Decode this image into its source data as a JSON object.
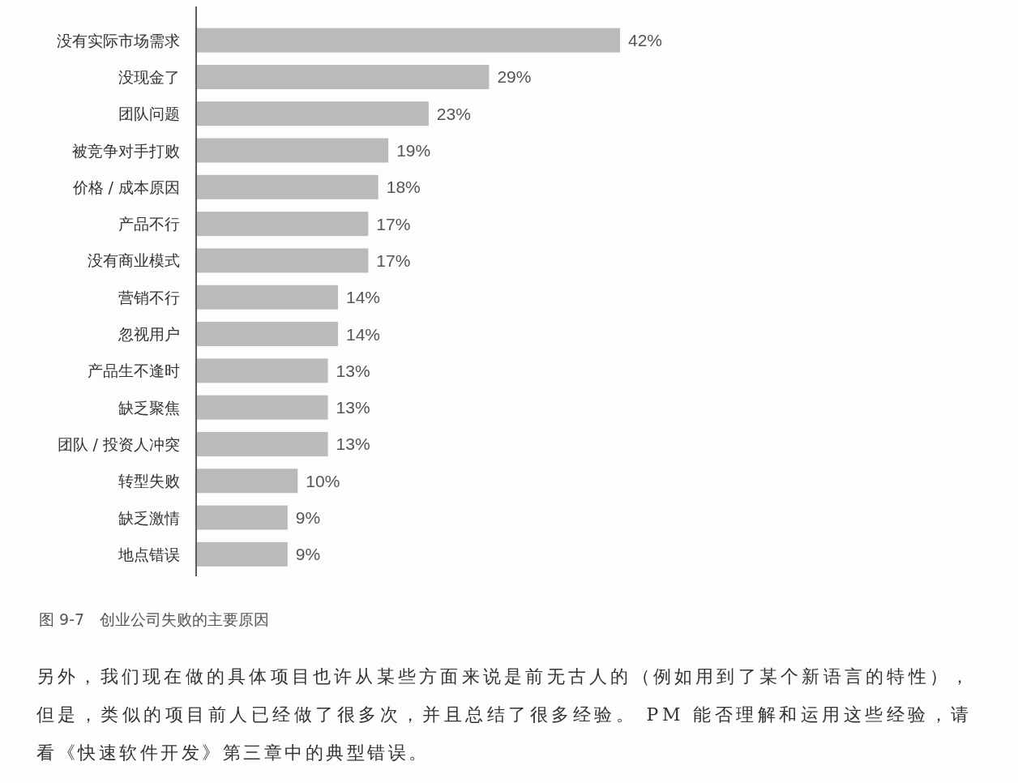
{
  "chart_data": {
    "type": "bar",
    "orientation": "horizontal",
    "title": "图 9-7　创业公司失败的主要原因",
    "categories": [
      "没有实际市场需求",
      "没现金了",
      "团队问题",
      "被竞争对手打败",
      "价格 / 成本原因",
      "产品不行",
      "没有商业模式",
      "营销不行",
      "忽视用户",
      "产品生不逢时",
      "缺乏聚焦",
      "团队 / 投资人冲突",
      "转型失败",
      "缺乏激情",
      "地点错误"
    ],
    "values": [
      42,
      29,
      23,
      19,
      18,
      17,
      17,
      14,
      14,
      13,
      13,
      13,
      10,
      9,
      9
    ],
    "value_labels": [
      "42%",
      "29%",
      "23%",
      "19%",
      "18%",
      "17%",
      "17%",
      "14%",
      "14%",
      "13%",
      "13%",
      "13%",
      "10%",
      "9%",
      "9%"
    ],
    "color": "#bababa",
    "annotations": [
      "另外，我们现在做的具体项目也许从某些方面来说是前无古人的（例如用到了某个新语言的特性），",
      "但是，类似的项目前人已经做了很多次，并且总结了很多经验。 PM 能否理解和运用这些经验，请",
      "看《快速软件开发》第三章中的典型错误。"
    ]
  }
}
